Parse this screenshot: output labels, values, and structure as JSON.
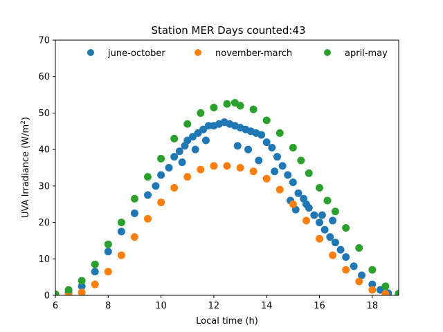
{
  "chart_data": {
    "type": "scatter",
    "title": "Station MER Days counted:43",
    "xlabel": "Local time (h)",
    "ylabel": "UVA Irradiance (W/m",
    "ylabel_sup": "2",
    "ylabel_close": ")",
    "xlim": [
      6,
      19
    ],
    "ylim": [
      0,
      70
    ],
    "xticks": [
      6,
      8,
      10,
      12,
      14,
      16,
      18
    ],
    "yticks": [
      0,
      10,
      20,
      30,
      40,
      50,
      60,
      70
    ],
    "legend_position": "top",
    "series": [
      {
        "name": "june-october",
        "color": "#1f77b4",
        "x": [
          6.0,
          6.5,
          7.0,
          7.5,
          8.0,
          8.5,
          9.0,
          9.5,
          9.8,
          10.0,
          10.3,
          10.5,
          10.7,
          10.9,
          11.0,
          11.2,
          11.4,
          11.6,
          11.8,
          12.0,
          12.2,
          12.4,
          12.6,
          12.8,
          13.0,
          13.2,
          13.4,
          13.6,
          13.8,
          14.0,
          14.2,
          14.4,
          14.6,
          14.8,
          15.0,
          15.2,
          15.4,
          15.6,
          15.8,
          16.0,
          16.2,
          16.4,
          16.6,
          16.8,
          17.0,
          17.3,
          17.6,
          18.0,
          18.3,
          18.6,
          19.0,
          10.8,
          11.3,
          11.7,
          12.9,
          13.3,
          13.7,
          14.3,
          14.9,
          15.1,
          15.5,
          16.1,
          16.5
        ],
        "y": [
          0.2,
          0.8,
          2.5,
          6.5,
          12.0,
          17.5,
          22.5,
          27.5,
          30.0,
          33.0,
          35.0,
          38.0,
          39.5,
          41.0,
          42.5,
          43.5,
          44.5,
          45.5,
          46.5,
          46.5,
          47.0,
          47.5,
          47.0,
          46.5,
          46.0,
          45.5,
          45.0,
          44.5,
          44.0,
          42.0,
          40.5,
          38.0,
          35.5,
          33.0,
          31.0,
          28.0,
          26.5,
          24.0,
          22.0,
          20.0,
          18.0,
          16.0,
          14.5,
          12.5,
          10.5,
          8.0,
          5.5,
          3.0,
          1.5,
          0.6,
          0.1,
          36.5,
          40.0,
          42.5,
          41.0,
          40.0,
          37.0,
          34.0,
          26.0,
          23.5,
          25.0,
          22.0,
          20.5
        ]
      },
      {
        "name": "november-march",
        "color": "#ff7f0e",
        "x": [
          6.0,
          6.5,
          7.0,
          7.5,
          8.0,
          8.5,
          9.0,
          9.5,
          10.0,
          10.5,
          11.0,
          11.5,
          12.0,
          12.5,
          13.0,
          13.5,
          14.0,
          14.5,
          15.0,
          15.5,
          16.0,
          16.5,
          17.0,
          17.5,
          18.0,
          18.5,
          19.0
        ],
        "y": [
          0.0,
          0.1,
          0.8,
          3.0,
          6.5,
          11.0,
          16.0,
          21.0,
          25.5,
          29.5,
          32.5,
          34.5,
          35.5,
          35.5,
          35.0,
          34.0,
          32.0,
          29.0,
          25.0,
          20.5,
          15.5,
          11.0,
          7.0,
          3.8,
          1.5,
          0.4,
          0.0
        ]
      },
      {
        "name": "april-may",
        "color": "#2ca02c",
        "x": [
          6.0,
          6.5,
          7.0,
          7.5,
          8.0,
          8.5,
          9.0,
          9.5,
          10.0,
          10.5,
          11.0,
          11.5,
          12.0,
          12.5,
          12.8,
          13.0,
          13.5,
          14.0,
          14.5,
          15.0,
          15.3,
          15.6,
          16.0,
          16.3,
          16.6,
          17.0,
          17.5,
          18.0,
          18.5,
          19.0
        ],
        "y": [
          0.3,
          1.5,
          4.0,
          8.5,
          14.0,
          20.0,
          26.5,
          32.5,
          37.5,
          43.0,
          47.0,
          50.0,
          51.5,
          52.5,
          52.8,
          52.0,
          51.0,
          48.0,
          44.5,
          40.5,
          37.0,
          33.5,
          29.5,
          26.0,
          23.0,
          18.5,
          13.0,
          7.0,
          2.5,
          0.5
        ]
      }
    ]
  }
}
